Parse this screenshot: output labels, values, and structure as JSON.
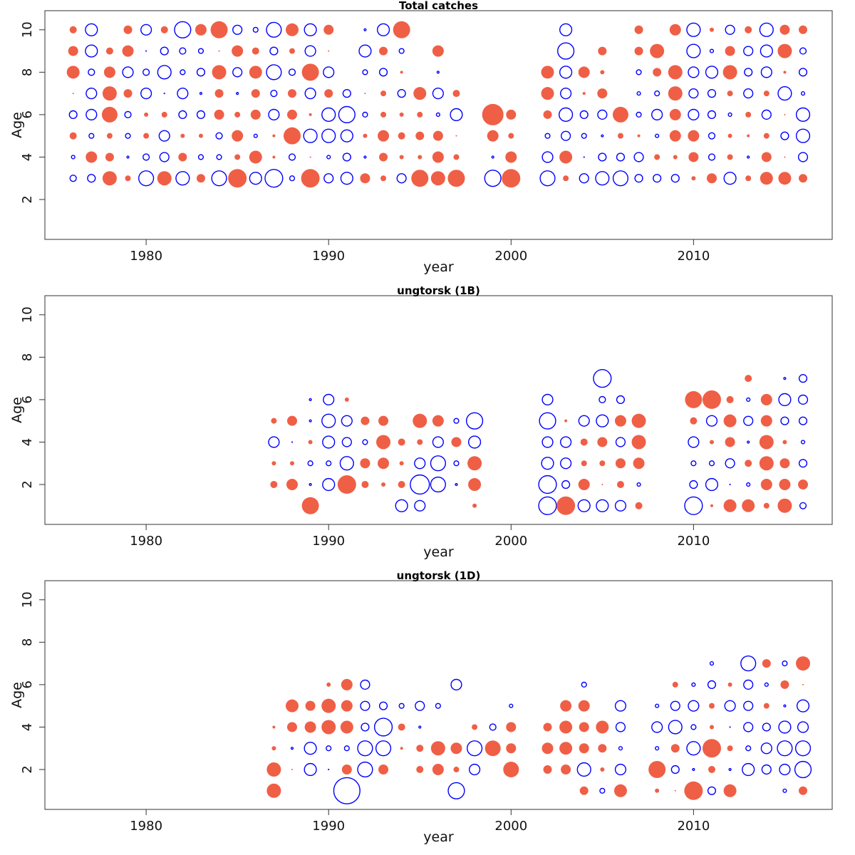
{
  "chart_data": [
    {
      "type": "scatter",
      "subtype": "bubble",
      "title": "Total catches",
      "xlabel": "year",
      "ylabel": "Age",
      "xlim": [
        1974.45,
        2017.6
      ],
      "ylim": [
        0.12,
        10.9
      ],
      "xticks": [
        1980,
        1990,
        2000,
        2010
      ],
      "yticks": [
        2,
        4,
        6,
        8,
        10
      ],
      "age_min": 3,
      "encoding": "value sign: positive = filled red, negative = open blue; size ~ |value|",
      "points_by_year": {
        "1976": [
          -0.5,
          -0.3,
          0.5,
          -0.6,
          0.1,
          0.9,
          0.7,
          0.5
        ],
        "1977": [
          -0.6,
          0.8,
          -0.4,
          -0.8,
          -0.8,
          -0.5,
          -0.9,
          -0.9
        ],
        "1978": [
          1.0,
          0.6,
          0.4,
          1.1,
          1.0,
          0.8,
          0.5,
          null
        ],
        "1979": [
          0.4,
          -0.2,
          -0.4,
          -0.5,
          0.6,
          -0.8,
          0.8,
          0.6
        ],
        "1980": [
          -1.1,
          -0.5,
          0.4,
          0.3,
          -0.8,
          -0.5,
          -0.1,
          -0.8
        ],
        "1981": [
          1.0,
          -0.7,
          -0.8,
          0.4,
          -0.1,
          -1.0,
          -0.6,
          0.5
        ],
        "1982": [
          -1.0,
          0.6,
          0.3,
          -0.6,
          -0.8,
          -0.4,
          -0.5,
          -1.2
        ],
        "1983": [
          0.6,
          -0.4,
          0.3,
          -0.6,
          -0.2,
          -0.6,
          -0.4,
          0.8
        ],
        "1984": [
          -1.1,
          -0.4,
          -0.5,
          0.7,
          0.6,
          1.0,
          0.1,
          1.2
        ],
        "1985": [
          1.3,
          0.4,
          0.8,
          0.4,
          -0.2,
          -0.7,
          0.8,
          -0.7
        ],
        "1986": [
          -0.9,
          0.9,
          -0.3,
          0.7,
          0.6,
          0.9,
          0.5,
          -0.4
        ],
        "1987": [
          -1.3,
          0.2,
          0.2,
          -0.8,
          -0.5,
          -1.1,
          -0.6,
          -1.1
        ],
        "1988": [
          -0.4,
          -0.5,
          1.2,
          0.7,
          0.6,
          -0.5,
          0.4,
          0.9
        ],
        "1989": [
          1.3,
          0.1,
          -1.0,
          0.2,
          -0.8,
          1.2,
          -0.8,
          -0.9
        ],
        "1990": [
          -0.7,
          -0.3,
          -1.0,
          -1.0,
          0.6,
          -0.8,
          0.1,
          0.7
        ],
        "1991": [
          -0.9,
          -0.6,
          -0.9,
          -1.2,
          -0.6,
          null,
          null,
          null
        ],
        "1992": [
          0.7,
          -0.2,
          0.3,
          -0.4,
          0.1,
          -0.4,
          -0.9,
          -0.2
        ],
        "1993": [
          0.4,
          0.6,
          0.8,
          0.4,
          0.4,
          -0.6,
          0.6,
          -0.9
        ],
        "1994": [
          -0.7,
          0.3,
          0.5,
          0.3,
          -0.6,
          0.2,
          -0.4,
          1.2
        ],
        "1995": [
          1.2,
          0.3,
          0.6,
          0.4,
          0.9,
          null,
          null,
          null
        ],
        "1996": [
          1.0,
          0.8,
          0.7,
          -0.3,
          -0.8,
          -0.2,
          0.8,
          null
        ],
        "1997": [
          1.2,
          0.4,
          0.1,
          -0.9,
          0.5,
          null,
          null,
          null
        ],
        "1999": [
          -1.2,
          -0.2,
          0.8,
          1.5,
          null,
          null,
          null,
          null
        ],
        "2000": [
          1.3,
          0.8,
          0.4,
          0.7,
          null,
          null,
          null,
          null
        ],
        "2002": [
          -1.1,
          -0.8,
          -0.4,
          0.6,
          0.9,
          0.9,
          null,
          null
        ],
        "2003": [
          0.4,
          0.9,
          -0.7,
          -1.0,
          -0.8,
          -0.9,
          -1.2,
          -0.9
        ],
        "2004": [
          -0.7,
          -0.1,
          -0.4,
          -0.6,
          0.2,
          0.8,
          null,
          null
        ],
        "2005": [
          -1.0,
          -0.6,
          -0.2,
          -0.7,
          0.7,
          0.3,
          0.6,
          null
        ],
        "2006": [
          -1.1,
          -0.6,
          0.4,
          1.1,
          null,
          null,
          null,
          null
        ],
        "2007": [
          -0.6,
          -0.7,
          0.2,
          -0.4,
          -0.3,
          -0.4,
          0.6,
          0.6
        ],
        "2008": [
          -0.6,
          0.4,
          -0.3,
          -0.8,
          -0.4,
          0.6,
          1.0,
          null
        ],
        "2009": [
          -0.6,
          0.3,
          0.8,
          0.8,
          1.0,
          1.0,
          null,
          0.8
        ],
        "2010": [
          0.3,
          0.7,
          0.8,
          -0.8,
          -0.7,
          -0.8,
          -1.0,
          -1.0
        ],
        "2011": [
          0.7,
          -0.5,
          -0.5,
          -0.6,
          -0.6,
          -0.9,
          -0.3,
          0.3
        ],
        "2012": [
          -0.9,
          0.4,
          0.3,
          -0.3,
          0.4,
          1.0,
          0.7,
          -0.7
        ],
        "2013": [
          0.4,
          -0.2,
          0.2,
          0.4,
          -0.7,
          -0.6,
          -0.7,
          0.5
        ],
        "2014": [
          0.9,
          0.7,
          0.4,
          -0.7,
          0.4,
          -0.8,
          -0.9,
          -1.0
        ],
        "2015": [
          0.9,
          0.1,
          -0.6,
          0.1,
          -1.0,
          0.2,
          1.0,
          0.7
        ],
        "2016": [
          0.6,
          -0.7,
          -1.0,
          -1.0,
          -0.3,
          -0.6,
          -0.5,
          0.6
        ]
      }
    },
    {
      "type": "scatter",
      "subtype": "bubble",
      "title": "ungtorsk (1B)",
      "xlabel": "year",
      "ylabel": "Age",
      "xlim": [
        1974.45,
        2017.6
      ],
      "ylim": [
        0.12,
        10.9
      ],
      "xticks": [
        1980,
        1990,
        2000,
        2010
      ],
      "yticks": [
        2,
        4,
        6,
        8,
        10
      ],
      "age_min": 1,
      "points_by_year": {
        "1987": [
          null,
          0.5,
          0.3,
          -0.8,
          0.4,
          null,
          null
        ],
        "1988": [
          null,
          0.8,
          0.3,
          -0.1,
          0.7,
          null,
          null
        ],
        "1989": [
          1.2,
          -0.2,
          -0.4,
          0.3,
          -0.2,
          -0.2,
          null
        ],
        "1990": [
          null,
          -0.9,
          -0.4,
          -0.9,
          -1.0,
          -0.8,
          null
        ],
        "1991": [
          null,
          1.3,
          -1.0,
          -0.7,
          -0.8,
          0.3,
          null
        ],
        "1992": [
          null,
          0.5,
          0.7,
          -0.4,
          0.6,
          null,
          null
        ],
        "1993": [
          null,
          0.3,
          0.8,
          1.0,
          0.7,
          null,
          null
        ],
        "1994": [
          -0.9,
          0.5,
          0.3,
          0.5,
          null,
          null,
          null
        ],
        "1995": [
          -0.8,
          -1.4,
          -0.8,
          0.4,
          1.0,
          null,
          null
        ],
        "1996": [
          null,
          -1.1,
          -1.1,
          -0.8,
          0.8,
          null,
          null
        ],
        "1997": [
          null,
          -0.2,
          -0.4,
          0.7,
          -0.4,
          null,
          null
        ],
        "1998": [
          0.3,
          0.9,
          1.0,
          -0.9,
          -1.2,
          null,
          null
        ],
        "2002": [
          -1.3,
          -1.3,
          -0.9,
          -0.8,
          -1.2,
          -0.8,
          null
        ],
        "2003": [
          1.3,
          -0.6,
          -0.8,
          -0.8,
          0.2,
          null,
          null
        ],
        "2004": [
          -0.9,
          0.8,
          0.4,
          0.5,
          -0.8,
          null,
          null
        ],
        "2005": [
          -0.9,
          0.1,
          0.4,
          0.7,
          -0.9,
          -0.5,
          -1.3
        ],
        "2006": [
          -0.8,
          0.5,
          0.7,
          -0.7,
          0.8,
          -0.6,
          null
        ],
        "2007": [
          0.5,
          -0.3,
          0.8,
          1.0,
          1.0,
          null,
          null
        ],
        "2010": [
          -1.3,
          -0.6,
          -0.4,
          -0.8,
          0.5,
          1.2,
          null
        ],
        "2011": [
          0.2,
          -0.9,
          -0.4,
          0.3,
          -0.8,
          1.3,
          null
        ],
        "2012": [
          0.9,
          -0.1,
          -0.7,
          0.7,
          0.9,
          0.5,
          null
        ],
        "2013": [
          0.9,
          -0.3,
          0.5,
          -0.2,
          -0.7,
          -0.3,
          0.5
        ],
        "2014": [
          0.4,
          0.8,
          1.0,
          1.0,
          0.8,
          0.8,
          null
        ],
        "2015": [
          1.0,
          0.8,
          0.7,
          0.3,
          -0.6,
          -0.9,
          -0.2
        ],
        "2016": [
          -0.5,
          0.7,
          -0.6,
          -0.3,
          -0.6,
          -0.7,
          -0.6
        ]
      }
    },
    {
      "type": "scatter",
      "subtype": "bubble",
      "title": "ungtorsk (1D)",
      "xlabel": "year",
      "ylabel": "Age",
      "xlim": [
        1974.45,
        2017.6
      ],
      "ylim": [
        0.12,
        10.9
      ],
      "xticks": [
        1980,
        1990,
        2000,
        2010
      ],
      "yticks": [
        2,
        4,
        6,
        8,
        10
      ],
      "age_min": 1,
      "points_by_year": {
        "1987": [
          1.0,
          1.0,
          0.3,
          0.2,
          null,
          null,
          null
        ],
        "1988": [
          null,
          0.1,
          -0.2,
          0.7,
          0.9,
          null,
          null
        ],
        "1989": [
          null,
          -0.9,
          -0.9,
          0.8,
          0.7,
          null,
          null
        ],
        "1990": [
          null,
          -0.1,
          -0.4,
          1.0,
          1.0,
          0.3,
          null
        ],
        "1991": [
          -1.9,
          0.7,
          -0.4,
          0.9,
          0.8,
          0.8,
          null
        ],
        "1992": [
          null,
          -1.1,
          -1.1,
          -0.6,
          -0.7,
          -0.7,
          null
        ],
        "1993": [
          null,
          0.7,
          -1.1,
          -1.3,
          -0.6,
          null,
          null
        ],
        "1994": [
          null,
          null,
          0.2,
          0.5,
          -0.4,
          null,
          null
        ],
        "1995": [
          null,
          0.5,
          0.5,
          -0.2,
          -0.7,
          null,
          null
        ],
        "1996": [
          null,
          0.8,
          1.0,
          null,
          -0.4,
          null,
          null
        ],
        "1997": [
          -1.2,
          0.4,
          0.8,
          null,
          null,
          -0.8,
          null
        ],
        "1998": [
          null,
          -0.8,
          -1.1,
          0.4,
          null,
          null,
          null
        ],
        "1999": [
          null,
          null,
          1.1,
          -0.5,
          null,
          null,
          null
        ],
        "2000": [
          null,
          1.1,
          0.7,
          0.7,
          -0.3,
          null,
          null
        ],
        "2002": [
          null,
          0.6,
          0.8,
          0.6,
          null,
          null,
          null
        ],
        "2003": [
          null,
          0.7,
          0.9,
          0.9,
          0.8,
          null,
          null
        ],
        "2004": [
          0.6,
          -1.0,
          0.7,
          0.7,
          0.8,
          -0.4,
          null
        ],
        "2005": [
          -0.4,
          0.3,
          0.6,
          0.9,
          null,
          null,
          null
        ],
        "2006": [
          0.9,
          -0.8,
          -0.3,
          -0.7,
          -0.8,
          null,
          null
        ],
        "2008": [
          0.3,
          1.2,
          -0.3,
          -0.8,
          -0.3,
          null,
          null
        ],
        "2009": [
          0.1,
          -0.6,
          0.6,
          -1.0,
          -0.7,
          0.4,
          null
        ],
        "2010": [
          1.3,
          -0.2,
          -1.0,
          -0.4,
          -0.8,
          -0.3,
          null
        ],
        "2011": [
          -0.6,
          0.5,
          1.3,
          0.3,
          0.4,
          -0.6,
          -0.3
        ],
        "2012": [
          0.9,
          -0.2,
          0.4,
          -0.1,
          -0.8,
          0.3,
          null
        ],
        "2013": [
          null,
          -0.9,
          -0.4,
          -0.7,
          -0.7,
          -0.7,
          -1.1
        ],
        "2014": [
          null,
          -0.7,
          -0.8,
          -0.6,
          0.4,
          -0.3,
          0.6
        ],
        "2015": [
          -0.3,
          -0.8,
          -1.1,
          -0.9,
          -0.2,
          0.6,
          -0.4
        ],
        "2016": [
          0.6,
          -1.2,
          -1.1,
          -0.8,
          -0.9,
          0.1,
          1.0
        ]
      }
    }
  ],
  "colors": {
    "positive": "#EF5F46",
    "negative": "#0000FF"
  }
}
